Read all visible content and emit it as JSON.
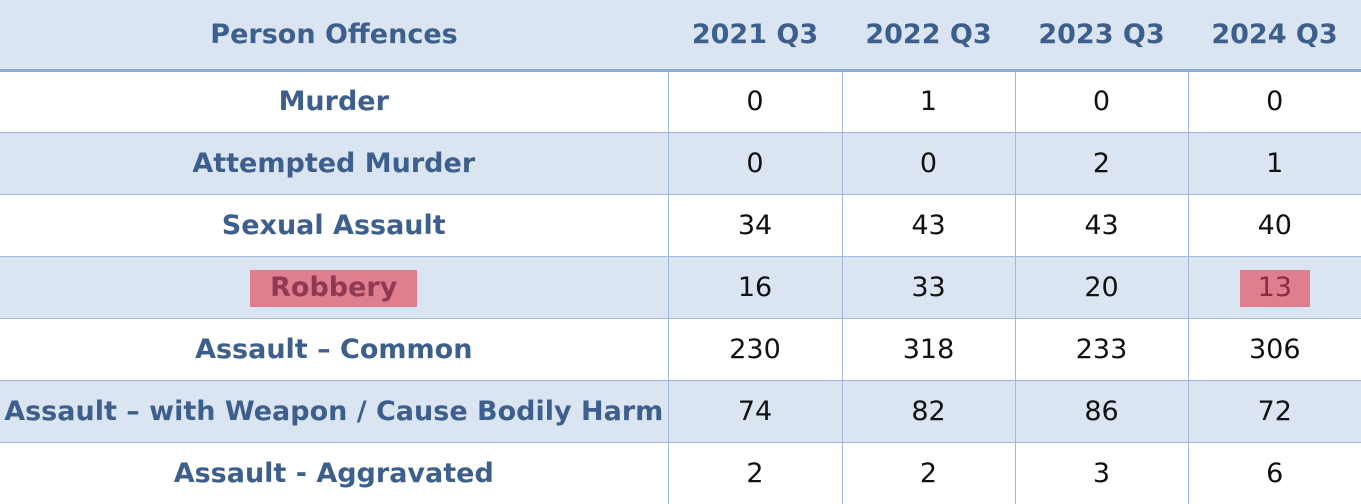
{
  "headers": [
    "Person Offences",
    "2021 Q3",
    "2022 Q3",
    "2023 Q3",
    "2024 Q3"
  ],
  "rows": [
    {
      "label": "Murder",
      "values": [
        "0",
        "1",
        "0",
        "0"
      ]
    },
    {
      "label": "Attempted Murder",
      "values": [
        "0",
        "0",
        "2",
        "1"
      ]
    },
    {
      "label": "Sexual Assault",
      "values": [
        "34",
        "43",
        "43",
        "40"
      ]
    },
    {
      "label": "Robbery",
      "values": [
        "16",
        "33",
        "20",
        "13"
      ]
    },
    {
      "label": "Assault – Common",
      "values": [
        "230",
        "318",
        "233",
        "306"
      ]
    },
    {
      "label": "Assault – with Weapon / Cause Bodily Harm",
      "values": [
        "74",
        "82",
        "86",
        "72"
      ]
    },
    {
      "label": "Assault - Aggravated",
      "values": [
        "2",
        "2",
        "3",
        "6"
      ]
    }
  ],
  "highlights": {
    "color": "#e07e90"
  }
}
